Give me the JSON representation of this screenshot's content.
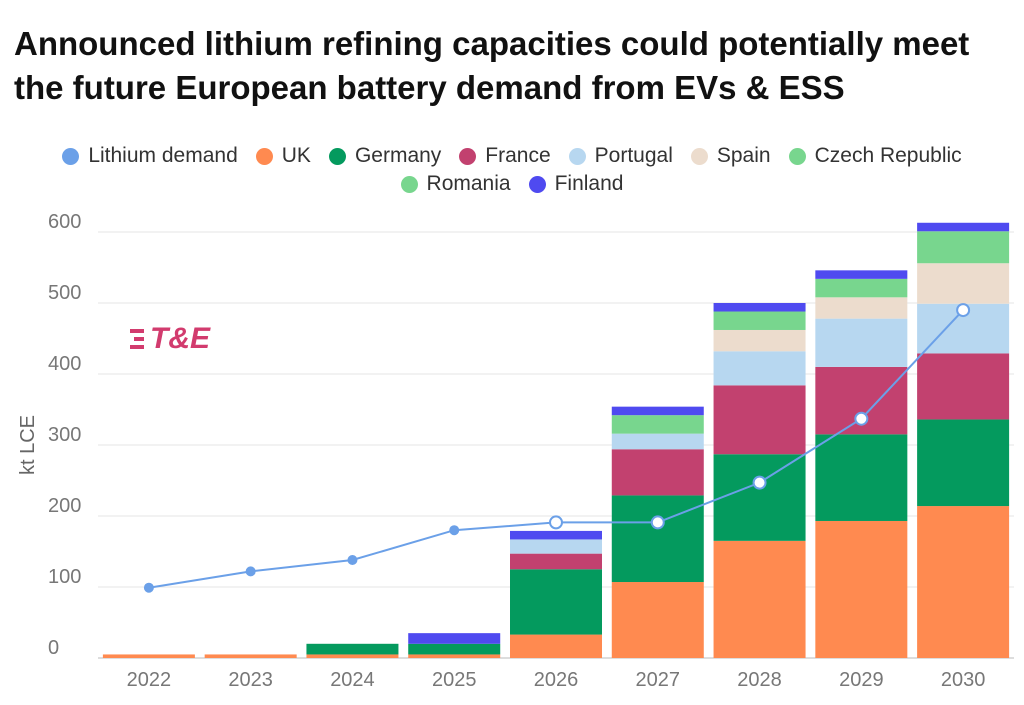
{
  "title": "Announced lithium refining capacities could potentially meet the future European battery demand from EVs & ESS",
  "logo_text": "T&E",
  "chart_data": {
    "type": "bar",
    "stacked": true,
    "title": "Announced lithium refining capacities could potentially meet the future European battery demand from EVs & ESS",
    "xlabel": "",
    "ylabel": "kt LCE",
    "ylim": [
      0,
      600
    ],
    "yticks": [
      "0",
      "100",
      "200",
      "300",
      "400",
      "500",
      "600"
    ],
    "categories": [
      "2022",
      "2023",
      "2024",
      "2025",
      "2026",
      "2027",
      "2028",
      "2029",
      "2030"
    ],
    "series": [
      {
        "name": "UK",
        "color": "#ff8a50",
        "values": [
          5,
          5,
          5,
          5,
          33,
          107,
          165,
          193,
          214
        ]
      },
      {
        "name": "Germany",
        "color": "#049a5e",
        "values": [
          0,
          0,
          15,
          15,
          92,
          122,
          122,
          122,
          122
        ]
      },
      {
        "name": "France",
        "color": "#c2416f",
        "values": [
          0,
          0,
          0,
          0,
          22,
          65,
          97,
          95,
          93
        ]
      },
      {
        "name": "Portugal",
        "color": "#b7d7f0",
        "values": [
          0,
          0,
          0,
          0,
          20,
          22,
          48,
          68,
          70
        ]
      },
      {
        "name": "Spain",
        "color": "#ecdccd",
        "values": [
          0,
          0,
          0,
          0,
          0,
          0,
          30,
          30,
          57
        ]
      },
      {
        "name": "Czech Republic",
        "color": "#78d68e",
        "values": [
          0,
          0,
          0,
          0,
          0,
          26,
          26,
          26,
          45
        ]
      },
      {
        "name": "Romania",
        "color": "#78d68e",
        "values": [
          0,
          0,
          0,
          0,
          0,
          0,
          0,
          0,
          0
        ]
      },
      {
        "name": "Finland",
        "color": "#4f4af0",
        "values": [
          0,
          0,
          0,
          15,
          12,
          12,
          12,
          12,
          12
        ]
      }
    ],
    "line": {
      "name": "Lithium demand",
      "color": "#6ba0e8",
      "values": [
        99,
        122,
        138,
        180,
        191,
        191,
        247,
        337,
        490
      ]
    },
    "legend": [
      [
        {
          "name": "Lithium demand",
          "color": "#6ba0e8"
        },
        {
          "name": "UK",
          "color": "#ff8a50"
        },
        {
          "name": "Germany",
          "color": "#049a5e"
        },
        {
          "name": "France",
          "color": "#c2416f"
        },
        {
          "name": "Portugal",
          "color": "#b7d7f0"
        },
        {
          "name": "Spain",
          "color": "#ecdccd"
        },
        {
          "name": "Czech Republic",
          "color": "#78d68e"
        }
      ],
      [
        {
          "name": "Romania",
          "color": "#78d68e"
        },
        {
          "name": "Finland",
          "color": "#4f4af0"
        }
      ]
    ]
  }
}
